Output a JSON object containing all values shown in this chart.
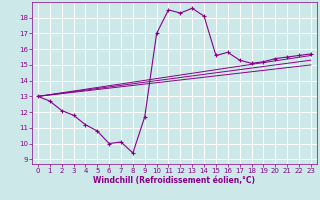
{
  "xlabel": "Windchill (Refroidissement éolien,°C)",
  "background_color": "#cce8e8",
  "line_color": "#880088",
  "grid_color": "#aadddd",
  "xlim": [
    -0.5,
    23.5
  ],
  "ylim": [
    8.7,
    19.0
  ],
  "yticks": [
    9,
    10,
    11,
    12,
    13,
    14,
    15,
    16,
    17,
    18
  ],
  "xticks": [
    0,
    1,
    2,
    3,
    4,
    5,
    6,
    7,
    8,
    9,
    10,
    11,
    12,
    13,
    14,
    15,
    16,
    17,
    18,
    19,
    20,
    21,
    22,
    23
  ],
  "main_x": [
    0,
    1,
    2,
    3,
    4,
    5,
    6,
    7,
    8,
    9,
    10,
    11,
    12,
    13,
    14,
    15,
    16,
    17,
    18,
    19,
    20,
    21,
    22,
    23
  ],
  "main_y": [
    13.0,
    12.7,
    12.1,
    11.8,
    11.2,
    10.8,
    10.0,
    10.1,
    9.4,
    11.7,
    17.0,
    18.5,
    18.3,
    18.6,
    18.1,
    15.6,
    15.8,
    15.3,
    15.1,
    15.2,
    15.4,
    15.5,
    15.6,
    15.7
  ],
  "line1_x": [
    0,
    23
  ],
  "line1_y": [
    13.0,
    15.6
  ],
  "line2_x": [
    0,
    23
  ],
  "line2_y": [
    13.0,
    15.3
  ],
  "line3_x": [
    0,
    23
  ],
  "line3_y": [
    13.0,
    15.0
  ],
  "xlabel_fontsize": 5.5,
  "tick_fontsize": 5.0
}
